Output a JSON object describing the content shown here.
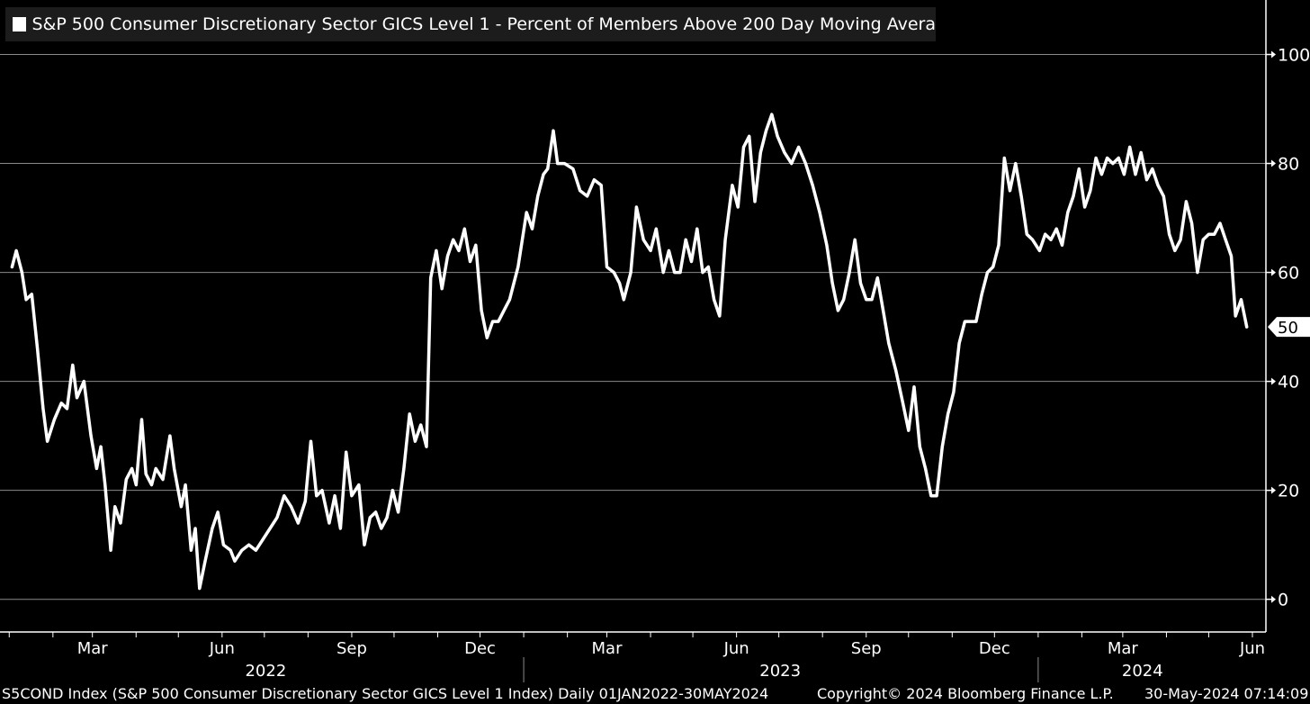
{
  "chart_data": {
    "type": "line",
    "title": "S&P 500 Consumer Discretionary Sector GICS Level 1 - Percent of Members Above 200 Day Moving Avera",
    "xlabel": "",
    "ylabel": "",
    "x_range": [
      "2022-01-01",
      "2024-05-30"
    ],
    "ylim": [
      -6,
      110
    ],
    "y_ticks": [
      0,
      20,
      40,
      60,
      80,
      100
    ],
    "x_month_ticks": [
      {
        "label": "Mar",
        "date": "2022-03-01"
      },
      {
        "label": "Jun",
        "date": "2022-06-01"
      },
      {
        "label": "Sep",
        "date": "2022-09-01"
      },
      {
        "label": "Dec",
        "date": "2022-12-01"
      },
      {
        "label": "Mar",
        "date": "2023-03-01"
      },
      {
        "label": "Jun",
        "date": "2023-06-01"
      },
      {
        "label": "Sep",
        "date": "2023-09-01"
      },
      {
        "label": "Dec",
        "date": "2023-12-01"
      },
      {
        "label": "Mar",
        "date": "2024-03-01"
      },
      {
        "label": "Jun",
        "date": "2024-06-01"
      }
    ],
    "x_year_labels": [
      {
        "label": "2022",
        "date": "2022-07-02"
      },
      {
        "label": "2023",
        "date": "2023-07-02"
      },
      {
        "label": "2024",
        "date": "2024-03-15"
      }
    ],
    "x_year_separators": [
      "2023-01-01",
      "2024-01-01"
    ],
    "last_value_label": "50",
    "grid": true,
    "legend_position": "top-left",
    "series": [
      {
        "name": "S&P 500 Consumer Discretionary Sector GICS Level 1 - Percent of Members Above 200 Day Moving Avera",
        "color": "#ffffff",
        "points": [
          [
            "2022-01-03",
            61
          ],
          [
            "2022-01-06",
            64
          ],
          [
            "2022-01-10",
            60
          ],
          [
            "2022-01-13",
            55
          ],
          [
            "2022-01-17",
            56
          ],
          [
            "2022-01-21",
            46
          ],
          [
            "2022-01-25",
            35
          ],
          [
            "2022-01-28",
            29
          ],
          [
            "2022-02-02",
            33
          ],
          [
            "2022-02-07",
            36
          ],
          [
            "2022-02-11",
            35
          ],
          [
            "2022-02-15",
            43
          ],
          [
            "2022-02-18",
            37
          ],
          [
            "2022-02-23",
            40
          ],
          [
            "2022-02-28",
            30
          ],
          [
            "2022-03-04",
            24
          ],
          [
            "2022-03-07",
            28
          ],
          [
            "2022-03-10",
            21
          ],
          [
            "2022-03-14",
            9
          ],
          [
            "2022-03-17",
            17
          ],
          [
            "2022-03-21",
            14
          ],
          [
            "2022-03-25",
            22
          ],
          [
            "2022-03-29",
            24
          ],
          [
            "2022-04-01",
            21
          ],
          [
            "2022-04-05",
            33
          ],
          [
            "2022-04-08",
            23
          ],
          [
            "2022-04-12",
            21
          ],
          [
            "2022-04-15",
            24
          ],
          [
            "2022-04-20",
            22
          ],
          [
            "2022-04-25",
            30
          ],
          [
            "2022-04-28",
            24
          ],
          [
            "2022-05-03",
            17
          ],
          [
            "2022-05-06",
            21
          ],
          [
            "2022-05-10",
            9
          ],
          [
            "2022-05-13",
            13
          ],
          [
            "2022-05-16",
            2
          ],
          [
            "2022-05-20",
            7
          ],
          [
            "2022-05-25",
            13
          ],
          [
            "2022-05-29",
            16
          ],
          [
            "2022-06-02",
            10
          ],
          [
            "2022-06-07",
            9
          ],
          [
            "2022-06-10",
            7
          ],
          [
            "2022-06-15",
            9
          ],
          [
            "2022-06-20",
            10
          ],
          [
            "2022-06-25",
            9
          ],
          [
            "2022-06-30",
            11
          ],
          [
            "2022-07-05",
            13
          ],
          [
            "2022-07-10",
            15
          ],
          [
            "2022-07-15",
            19
          ],
          [
            "2022-07-20",
            17
          ],
          [
            "2022-07-25",
            14
          ],
          [
            "2022-07-30",
            18
          ],
          [
            "2022-08-03",
            29
          ],
          [
            "2022-08-07",
            19
          ],
          [
            "2022-08-11",
            20
          ],
          [
            "2022-08-16",
            14
          ],
          [
            "2022-08-20",
            19
          ],
          [
            "2022-08-24",
            13
          ],
          [
            "2022-08-28",
            27
          ],
          [
            "2022-09-01",
            19
          ],
          [
            "2022-09-06",
            21
          ],
          [
            "2022-09-10",
            10
          ],
          [
            "2022-09-14",
            15
          ],
          [
            "2022-09-18",
            16
          ],
          [
            "2022-09-22",
            13
          ],
          [
            "2022-09-26",
            15
          ],
          [
            "2022-09-30",
            20
          ],
          [
            "2022-10-04",
            16
          ],
          [
            "2022-10-08",
            24
          ],
          [
            "2022-10-12",
            34
          ],
          [
            "2022-10-16",
            29
          ],
          [
            "2022-10-20",
            32
          ],
          [
            "2022-10-24",
            28
          ],
          [
            "2022-10-27",
            59
          ],
          [
            "2022-10-31",
            64
          ],
          [
            "2022-11-04",
            57
          ],
          [
            "2022-11-08",
            63
          ],
          [
            "2022-11-12",
            66
          ],
          [
            "2022-11-16",
            64
          ],
          [
            "2022-11-20",
            68
          ],
          [
            "2022-11-24",
            62
          ],
          [
            "2022-11-28",
            65
          ],
          [
            "2022-12-02",
            53
          ],
          [
            "2022-12-06",
            48
          ],
          [
            "2022-12-10",
            51
          ],
          [
            "2022-12-14",
            51
          ],
          [
            "2022-12-18",
            53
          ],
          [
            "2022-12-22",
            55
          ],
          [
            "2022-12-28",
            61
          ],
          [
            "2023-01-03",
            71
          ],
          [
            "2023-01-07",
            68
          ],
          [
            "2023-01-11",
            74
          ],
          [
            "2023-01-15",
            78
          ],
          [
            "2023-01-18",
            79
          ],
          [
            "2023-01-22",
            86
          ],
          [
            "2023-01-25",
            80
          ],
          [
            "2023-01-30",
            80
          ],
          [
            "2023-02-05",
            79
          ],
          [
            "2023-02-10",
            75
          ],
          [
            "2023-02-15",
            74
          ],
          [
            "2023-02-20",
            77
          ],
          [
            "2023-02-25",
            76
          ],
          [
            "2023-03-01",
            61
          ],
          [
            "2023-03-06",
            60
          ],
          [
            "2023-03-10",
            58
          ],
          [
            "2023-03-13",
            55
          ],
          [
            "2023-03-18",
            60
          ],
          [
            "2023-03-22",
            72
          ],
          [
            "2023-03-27",
            66
          ],
          [
            "2023-04-01",
            64
          ],
          [
            "2023-04-05",
            68
          ],
          [
            "2023-04-10",
            60
          ],
          [
            "2023-04-14",
            64
          ],
          [
            "2023-04-18",
            60
          ],
          [
            "2023-04-22",
            60
          ],
          [
            "2023-04-26",
            66
          ],
          [
            "2023-04-30",
            62
          ],
          [
            "2023-05-04",
            68
          ],
          [
            "2023-05-08",
            60
          ],
          [
            "2023-05-12",
            61
          ],
          [
            "2023-05-16",
            55
          ],
          [
            "2023-05-20",
            52
          ],
          [
            "2023-05-24",
            66
          ],
          [
            "2023-05-29",
            76
          ],
          [
            "2023-06-02",
            72
          ],
          [
            "2023-06-06",
            83
          ],
          [
            "2023-06-10",
            85
          ],
          [
            "2023-06-14",
            73
          ],
          [
            "2023-06-18",
            82
          ],
          [
            "2023-06-22",
            86
          ],
          [
            "2023-06-26",
            89
          ],
          [
            "2023-06-30",
            85
          ],
          [
            "2023-07-05",
            82
          ],
          [
            "2023-07-10",
            80
          ],
          [
            "2023-07-15",
            83
          ],
          [
            "2023-07-20",
            80
          ],
          [
            "2023-07-25",
            76
          ],
          [
            "2023-07-30",
            71
          ],
          [
            "2023-08-04",
            65
          ],
          [
            "2023-08-08",
            58
          ],
          [
            "2023-08-12",
            53
          ],
          [
            "2023-08-16",
            55
          ],
          [
            "2023-08-20",
            60
          ],
          [
            "2023-08-24",
            66
          ],
          [
            "2023-08-28",
            58
          ],
          [
            "2023-09-01",
            55
          ],
          [
            "2023-09-05",
            55
          ],
          [
            "2023-09-09",
            59
          ],
          [
            "2023-09-13",
            53
          ],
          [
            "2023-09-17",
            47
          ],
          [
            "2023-09-22",
            42
          ],
          [
            "2023-09-27",
            36
          ],
          [
            "2023-10-01",
            31
          ],
          [
            "2023-10-05",
            39
          ],
          [
            "2023-10-09",
            28
          ],
          [
            "2023-10-13",
            24
          ],
          [
            "2023-10-17",
            19
          ],
          [
            "2023-10-21",
            19
          ],
          [
            "2023-10-25",
            28
          ],
          [
            "2023-10-29",
            34
          ],
          [
            "2023-11-02",
            38
          ],
          [
            "2023-11-06",
            47
          ],
          [
            "2023-11-10",
            51
          ],
          [
            "2023-11-14",
            51
          ],
          [
            "2023-11-18",
            51
          ],
          [
            "2023-11-22",
            56
          ],
          [
            "2023-11-26",
            60
          ],
          [
            "2023-11-30",
            61
          ],
          [
            "2023-12-04",
            65
          ],
          [
            "2023-12-08",
            81
          ],
          [
            "2023-12-12",
            75
          ],
          [
            "2023-12-16",
            80
          ],
          [
            "2023-12-20",
            74
          ],
          [
            "2023-12-24",
            67
          ],
          [
            "2023-12-28",
            66
          ],
          [
            "2024-01-02",
            64
          ],
          [
            "2024-01-06",
            67
          ],
          [
            "2024-01-10",
            66
          ],
          [
            "2024-01-14",
            68
          ],
          [
            "2024-01-18",
            65
          ],
          [
            "2024-01-22",
            71
          ],
          [
            "2024-01-26",
            74
          ],
          [
            "2024-01-30",
            79
          ],
          [
            "2024-02-03",
            72
          ],
          [
            "2024-02-07",
            75
          ],
          [
            "2024-02-11",
            81
          ],
          [
            "2024-02-15",
            78
          ],
          [
            "2024-02-19",
            81
          ],
          [
            "2024-02-23",
            80
          ],
          [
            "2024-02-27",
            81
          ],
          [
            "2024-03-02",
            78
          ],
          [
            "2024-03-06",
            83
          ],
          [
            "2024-03-10",
            78
          ],
          [
            "2024-03-14",
            82
          ],
          [
            "2024-03-18",
            77
          ],
          [
            "2024-03-22",
            79
          ],
          [
            "2024-03-26",
            76
          ],
          [
            "2024-03-30",
            74
          ],
          [
            "2024-04-03",
            67
          ],
          [
            "2024-04-07",
            64
          ],
          [
            "2024-04-11",
            66
          ],
          [
            "2024-04-15",
            73
          ],
          [
            "2024-04-19",
            69
          ],
          [
            "2024-04-23",
            60
          ],
          [
            "2024-04-27",
            66
          ],
          [
            "2024-05-01",
            67
          ],
          [
            "2024-05-05",
            67
          ],
          [
            "2024-05-09",
            69
          ],
          [
            "2024-05-13",
            66
          ],
          [
            "2024-05-17",
            63
          ],
          [
            "2024-05-20",
            52
          ],
          [
            "2024-05-24",
            55
          ],
          [
            "2024-05-28",
            50
          ]
        ]
      }
    ]
  },
  "footer": {
    "index_info": "S5COND Index (S&P 500 Consumer Discretionary Sector GICS Level 1 Index)  Daily 01JAN2022-30MAY2024",
    "copyright": "Copyright© 2024 Bloomberg Finance L.P.",
    "timestamp": "30-May-2024 07:14:09"
  }
}
